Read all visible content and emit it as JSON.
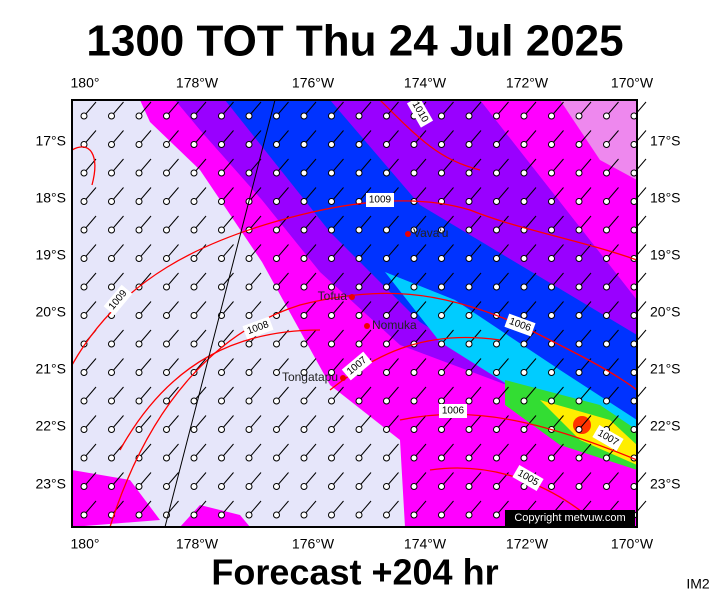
{
  "title": "1300 TOT Thu 24 Jul 2025",
  "lon_labels_top": [
    "180°",
    "178°W",
    "176°W",
    "174°W",
    "172°W",
    "170°W"
  ],
  "lon_labels_bottom": [
    "180°",
    "178°W",
    "176°W",
    "174°W",
    "172°W",
    "170°W"
  ],
  "lat_labels_left": [
    "17°S",
    "18°S",
    "19°S",
    "20°S",
    "21°S",
    "22°S",
    "23°S"
  ],
  "lat_labels_right": [
    "17°S",
    "18°S",
    "19°S",
    "20°S",
    "21°S",
    "22°S",
    "23°S"
  ],
  "places": [
    "Vava'u",
    "Tofua",
    "Nomuka",
    "Tongatapu"
  ],
  "isobars": [
    "1010",
    "1009",
    "1009",
    "1008",
    "1007",
    "1006",
    "1006",
    "1005",
    "1007"
  ],
  "copyright": "Copyright metvuw.com",
  "footer": "Forecast +204 hr",
  "image_id": "IM2"
}
